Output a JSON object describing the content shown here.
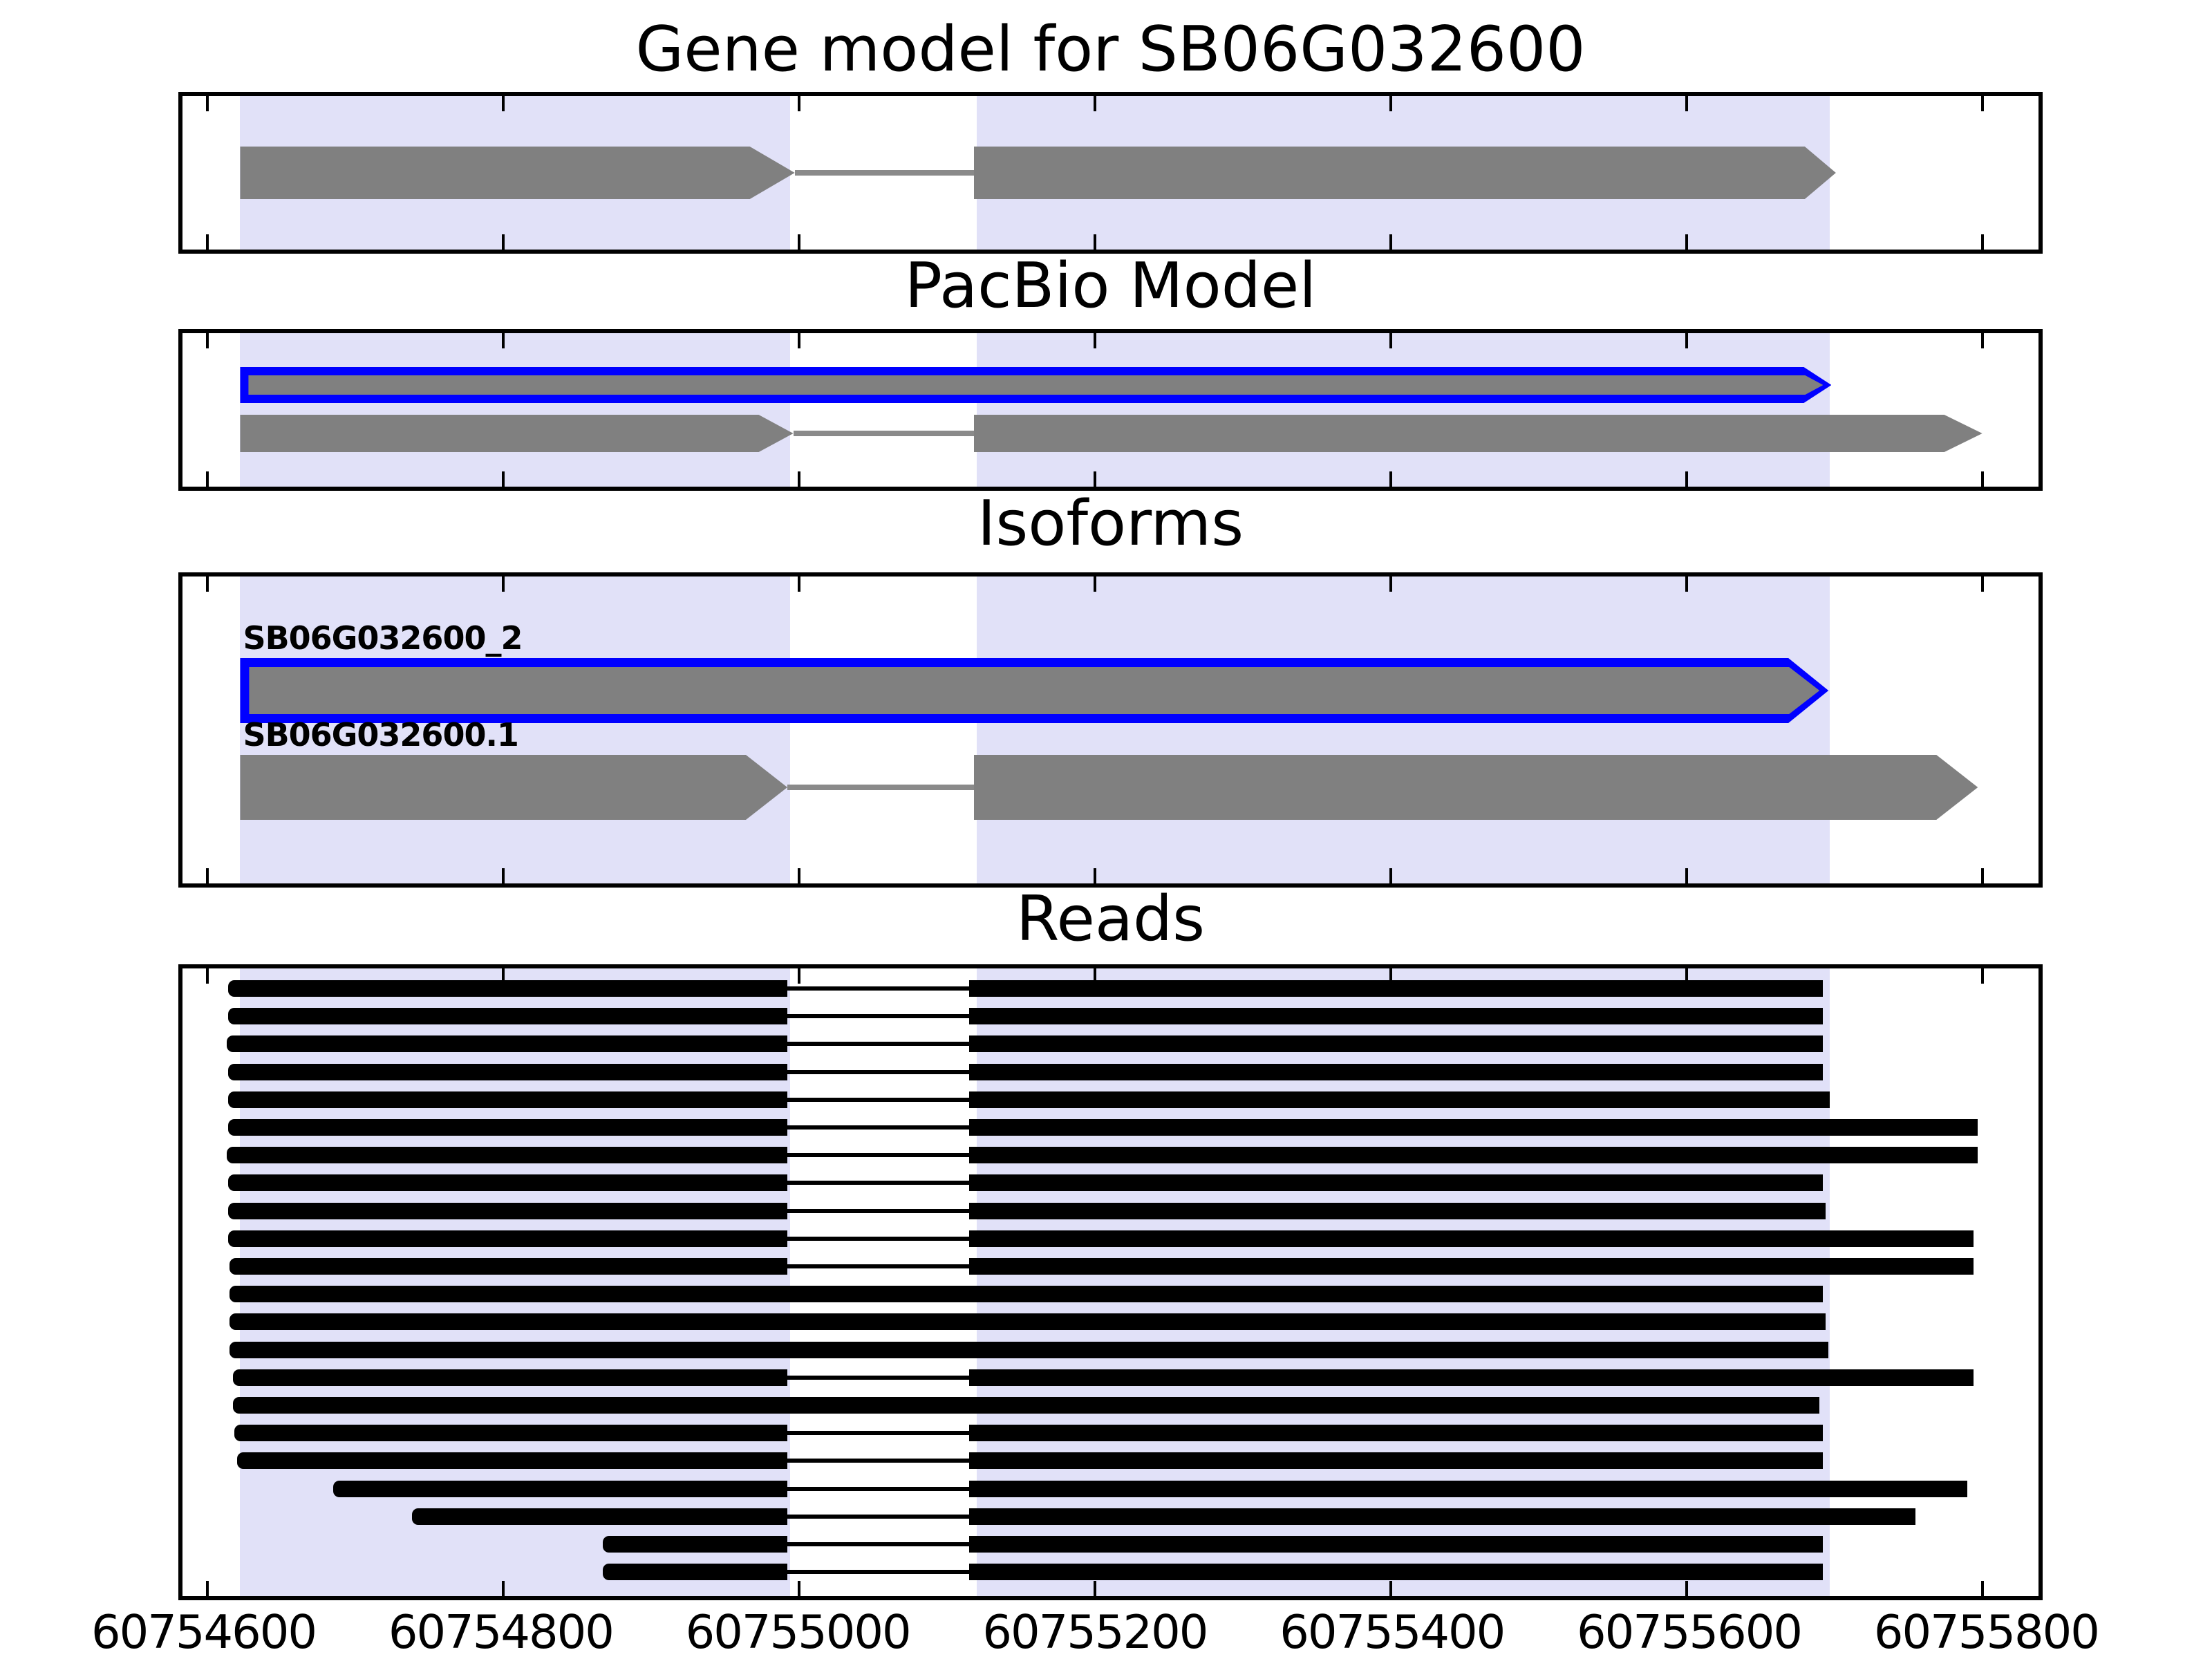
{
  "colors": {
    "background": "#ffffff",
    "highlight_band": "#e1e1f8",
    "model_gray": "#808080",
    "intron_gray": "#8a8a8a",
    "outline_blue": "#0000ff",
    "read_black": "#000000",
    "axis_black": "#000000"
  },
  "chart_data": {
    "type": "genome-tracks",
    "locus": "SB06G032600",
    "xaxis": {
      "min": 60754583,
      "max": 60755838,
      "ticks": [
        60754600,
        60754800,
        60755000,
        60755200,
        60755400,
        60755600,
        60755800
      ],
      "tick_labels": [
        "60754600",
        "60754800",
        "60755000",
        "60755200",
        "60755400",
        "60755600",
        "60755800"
      ]
    },
    "highlight_regions": [
      {
        "start": 60754622,
        "end": 60754994
      },
      {
        "start": 60755120,
        "end": 60755697
      }
    ],
    "panels": [
      {
        "name": "gene-model",
        "title": "Gene model for SB06G032600",
        "features": [
          {
            "kind": "spliced_model",
            "exons": [
              [
                60754622,
                60754997
              ],
              [
                60755118,
                60755701
              ]
            ]
          }
        ]
      },
      {
        "name": "pacbio-model",
        "title": "PacBio Model",
        "features": [
          {
            "kind": "boxed_read",
            "span": [
              60754622,
              60755698
            ]
          },
          {
            "kind": "spliced_model",
            "exons": [
              [
                60754622,
                60754996
              ],
              [
                60755118,
                60755800
              ]
            ]
          }
        ]
      },
      {
        "name": "isoforms",
        "title": "Isoforms",
        "features": [
          {
            "kind": "boxed_read",
            "label": "SB06G032600_2",
            "span": [
              60754622,
              60755696
            ]
          },
          {
            "kind": "spliced_model",
            "label": "SB06G032600.1",
            "exons": [
              [
                60754622,
                60754992
              ],
              [
                60755118,
                60755797
              ]
            ]
          }
        ]
      },
      {
        "name": "reads",
        "title": "Reads",
        "splice_junction": {
          "donor": 60754992,
          "acceptor": 60755115
        },
        "reads": [
          {
            "start": 60754614,
            "end": 60755692,
            "spliced": true
          },
          {
            "start": 60754614,
            "end": 60755692,
            "spliced": true
          },
          {
            "start": 60754613,
            "end": 60755692,
            "spliced": true
          },
          {
            "start": 60754614,
            "end": 60755692,
            "spliced": true
          },
          {
            "start": 60754614,
            "end": 60755697,
            "spliced": true
          },
          {
            "start": 60754614,
            "end": 60755797,
            "spliced": true
          },
          {
            "start": 60754613,
            "end": 60755797,
            "spliced": true
          },
          {
            "start": 60754614,
            "end": 60755692,
            "spliced": true
          },
          {
            "start": 60754614,
            "end": 60755694,
            "spliced": true
          },
          {
            "start": 60754614,
            "end": 60755794,
            "spliced": true
          },
          {
            "start": 60754615,
            "end": 60755794,
            "spliced": true
          },
          {
            "start": 60754615,
            "end": 60755692,
            "spliced": false
          },
          {
            "start": 60754615,
            "end": 60755694,
            "spliced": false
          },
          {
            "start": 60754615,
            "end": 60755696,
            "spliced": false
          },
          {
            "start": 60754617,
            "end": 60755794,
            "spliced": true
          },
          {
            "start": 60754617,
            "end": 60755690,
            "spliced": false
          },
          {
            "start": 60754618,
            "end": 60755692,
            "spliced": true
          },
          {
            "start": 60754620,
            "end": 60755692,
            "spliced": true
          },
          {
            "start": 60754685,
            "end": 60755790,
            "spliced": true
          },
          {
            "start": 60754738,
            "end": 60755755,
            "spliced": true
          },
          {
            "start": 60754867,
            "end": 60755692,
            "spliced": true
          },
          {
            "start": 60754867,
            "end": 60755692,
            "spliced": true
          }
        ]
      }
    ]
  }
}
